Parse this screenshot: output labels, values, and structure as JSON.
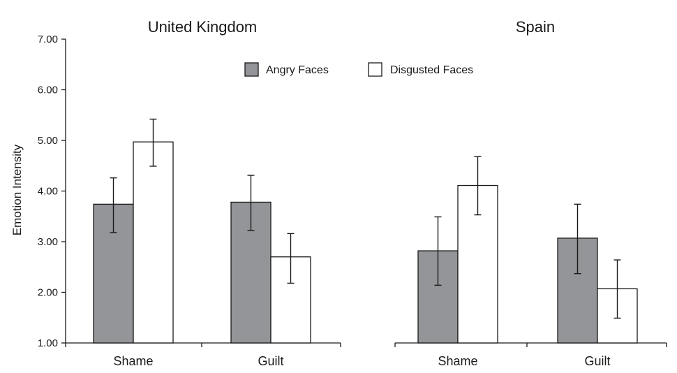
{
  "chart_data": [
    {
      "type": "bar",
      "title": "United Kingdom",
      "ylabel": "Emotion Intensity",
      "ylim": [
        1,
        7
      ],
      "yticks": [
        "1.00",
        "2.00",
        "3.00",
        "4.00",
        "5.00",
        "6.00",
        "7.00"
      ],
      "categories": [
        "Shame",
        "Guilt"
      ],
      "series": [
        {
          "name": "Angry Faces",
          "color": "#939598",
          "values": [
            3.74,
            3.78
          ],
          "error_low": [
            3.18,
            3.22
          ],
          "error_high": [
            4.26,
            4.31
          ]
        },
        {
          "name": "Disgusted Faces",
          "color": "#ffffff",
          "values": [
            4.97,
            2.7
          ],
          "error_low": [
            4.49,
            2.18
          ],
          "error_high": [
            5.42,
            3.16
          ]
        }
      ]
    },
    {
      "type": "bar",
      "title": "Spain",
      "ylim": [
        1,
        7
      ],
      "categories": [
        "Shame",
        "Guilt"
      ],
      "series": [
        {
          "name": "Angry Faces",
          "color": "#939598",
          "values": [
            2.82,
            3.07
          ],
          "error_low": [
            2.14,
            2.37
          ],
          "error_high": [
            3.49,
            3.74
          ]
        },
        {
          "name": "Disgusted Faces",
          "color": "#ffffff",
          "values": [
            4.11,
            2.07
          ],
          "error_low": [
            3.53,
            1.49
          ],
          "error_high": [
            4.68,
            2.64
          ]
        }
      ]
    }
  ],
  "legend": {
    "placement": "top-center",
    "items": [
      {
        "label": "Angry Faces",
        "color": "#939598"
      },
      {
        "label": "Disgusted Faces",
        "color": "#ffffff"
      }
    ]
  }
}
